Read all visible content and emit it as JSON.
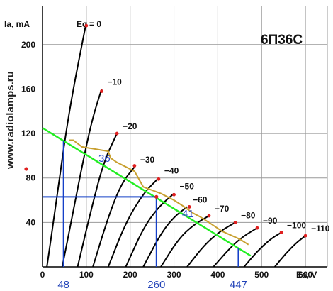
{
  "chart_data": {
    "type": "line",
    "model": "6П36С",
    "watermark": "www.radiolamps.ru",
    "xlabel": "Ea, V",
    "ylabel": "Ia, mA",
    "xlim": [
      0,
      650
    ],
    "ylim": [
      0,
      235
    ],
    "x_ticks": [
      0,
      100,
      200,
      300,
      400,
      500,
      600
    ],
    "y_ticks": [
      40,
      80,
      120,
      160,
      200
    ],
    "grid": true,
    "colors": {
      "curve": "#000000",
      "grid": "#999999",
      "power_limit": "#c8a030",
      "load_line": "#22ee22",
      "operating": "#1540c8",
      "power_dot": "#e02020"
    },
    "series": [
      {
        "name": "Ec = 0",
        "points": [
          [
            10,
            0
          ],
          [
            32,
            60
          ],
          [
            50,
            112
          ],
          [
            70,
            160
          ],
          [
            100,
            220
          ]
        ]
      },
      {
        "name": "−10",
        "points": [
          [
            45,
            0
          ],
          [
            70,
            50
          ],
          [
            95,
            100
          ],
          [
            115,
            135
          ],
          [
            135,
            160
          ]
        ]
      },
      {
        "name": "−20",
        "points": [
          [
            80,
            0
          ],
          [
            110,
            50
          ],
          [
            140,
            95
          ],
          [
            170,
            120
          ]
        ]
      },
      {
        "name": "−30",
        "points": [
          [
            115,
            0
          ],
          [
            150,
            45
          ],
          [
            180,
            75
          ],
          [
            210,
            90
          ]
        ]
      },
      {
        "name": "−40",
        "points": [
          [
            150,
            0
          ],
          [
            190,
            40
          ],
          [
            230,
            66
          ],
          [
            265,
            80
          ]
        ]
      },
      {
        "name": "−50",
        "points": [
          [
            190,
            0
          ],
          [
            230,
            35
          ],
          [
            265,
            54
          ],
          [
            300,
            66
          ]
        ]
      },
      {
        "name": "−60",
        "points": [
          [
            230,
            0
          ],
          [
            270,
            30
          ],
          [
            300,
            45
          ],
          [
            330,
            54
          ]
        ]
      },
      {
        "name": "−70",
        "points": [
          [
            270,
            0
          ],
          [
            310,
            25
          ],
          [
            345,
            38
          ],
          [
            380,
            46
          ]
        ]
      },
      {
        "name": "−80",
        "points": [
          [
            330,
            0
          ],
          [
            370,
            20
          ],
          [
            405,
            32
          ],
          [
            440,
            40
          ]
        ]
      },
      {
        "name": "−90",
        "points": [
          [
            390,
            0
          ],
          [
            430,
            18
          ],
          [
            460,
            28
          ],
          [
            490,
            35
          ]
        ]
      },
      {
        "name": "−100",
        "points": [
          [
            460,
            0
          ],
          [
            490,
            14
          ],
          [
            520,
            25
          ],
          [
            545,
            31
          ]
        ]
      },
      {
        "name": "−110",
        "points": [
          [
            530,
            0
          ],
          [
            555,
            12
          ],
          [
            580,
            22
          ],
          [
            600,
            28
          ]
        ]
      }
    ],
    "power_points": [
      [
        100,
        217
      ],
      [
        135,
        158
      ],
      [
        170,
        120
      ],
      [
        210,
        91
      ],
      [
        265,
        79
      ],
      [
        300,
        65
      ],
      [
        335,
        54
      ],
      [
        380,
        46
      ],
      [
        440,
        40
      ],
      [
        490,
        35
      ],
      [
        545,
        31
      ],
      [
        600,
        28
      ]
    ],
    "power_limit_path": [
      [
        60,
        114
      ],
      [
        70,
        114
      ],
      [
        90,
        108
      ],
      [
        150,
        104
      ],
      [
        155,
        98
      ],
      [
        170,
        94
      ],
      [
        210,
        86
      ],
      [
        230,
        72
      ],
      [
        250,
        69
      ],
      [
        270,
        66
      ],
      [
        300,
        60
      ],
      [
        320,
        55
      ],
      [
        345,
        48
      ],
      [
        360,
        45
      ],
      [
        380,
        40
      ],
      [
        410,
        32
      ],
      [
        450,
        25
      ],
      [
        470,
        20
      ]
    ],
    "load_line": [
      [
        0,
        125
      ],
      [
        475,
        10
      ]
    ],
    "operating_point": {
      "x": 260,
      "y": 63
    },
    "projection_x": [
      48,
      260,
      447
    ],
    "projection_x_labels": [
      "48",
      "260",
      "447"
    ],
    "projection_y": 63,
    "load_line_top": {
      "x": 48,
      "y": 113
    },
    "load_line_bottom": {
      "x": 447,
      "y": 17
    },
    "annotations": [
      "36",
      "41"
    ]
  }
}
